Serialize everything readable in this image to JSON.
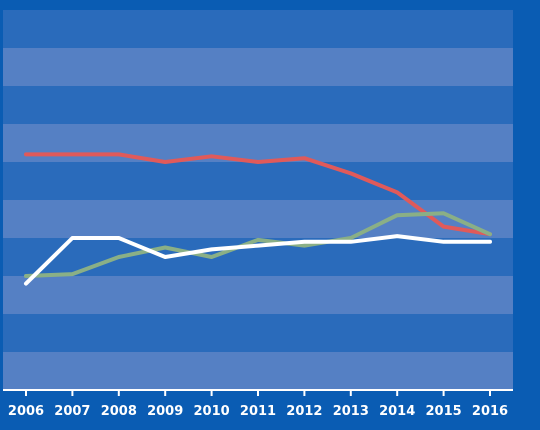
{
  "chart_data": {
    "type": "line",
    "x": [
      "2006",
      "2007",
      "2008",
      "2009",
      "2010",
      "2011",
      "2012",
      "2013",
      "2014",
      "2015",
      "2016"
    ],
    "ylim": [
      0,
      10
    ],
    "grid": "alternating horizontal bands",
    "legend": "none",
    "colors": {
      "background": "#0a5cb3",
      "band_dark": "#2a6bbb",
      "band_light": "#5580c4",
      "axis": "#ffffff"
    },
    "series": [
      {
        "color": "#e05a5a",
        "values": [
          6.2,
          6.2,
          6.2,
          6.0,
          6.15,
          6.0,
          6.1,
          5.7,
          5.2,
          4.3,
          4.1
        ]
      },
      {
        "color": "#8aaf86",
        "values": [
          3.0,
          3.05,
          3.5,
          3.75,
          3.5,
          3.95,
          3.8,
          4.0,
          4.6,
          4.65,
          4.1
        ]
      },
      {
        "color": "#ffffff",
        "values": [
          2.8,
          4.0,
          4.0,
          3.5,
          3.7,
          3.8,
          3.9,
          3.9,
          4.05,
          3.9,
          3.9
        ]
      }
    ]
  }
}
